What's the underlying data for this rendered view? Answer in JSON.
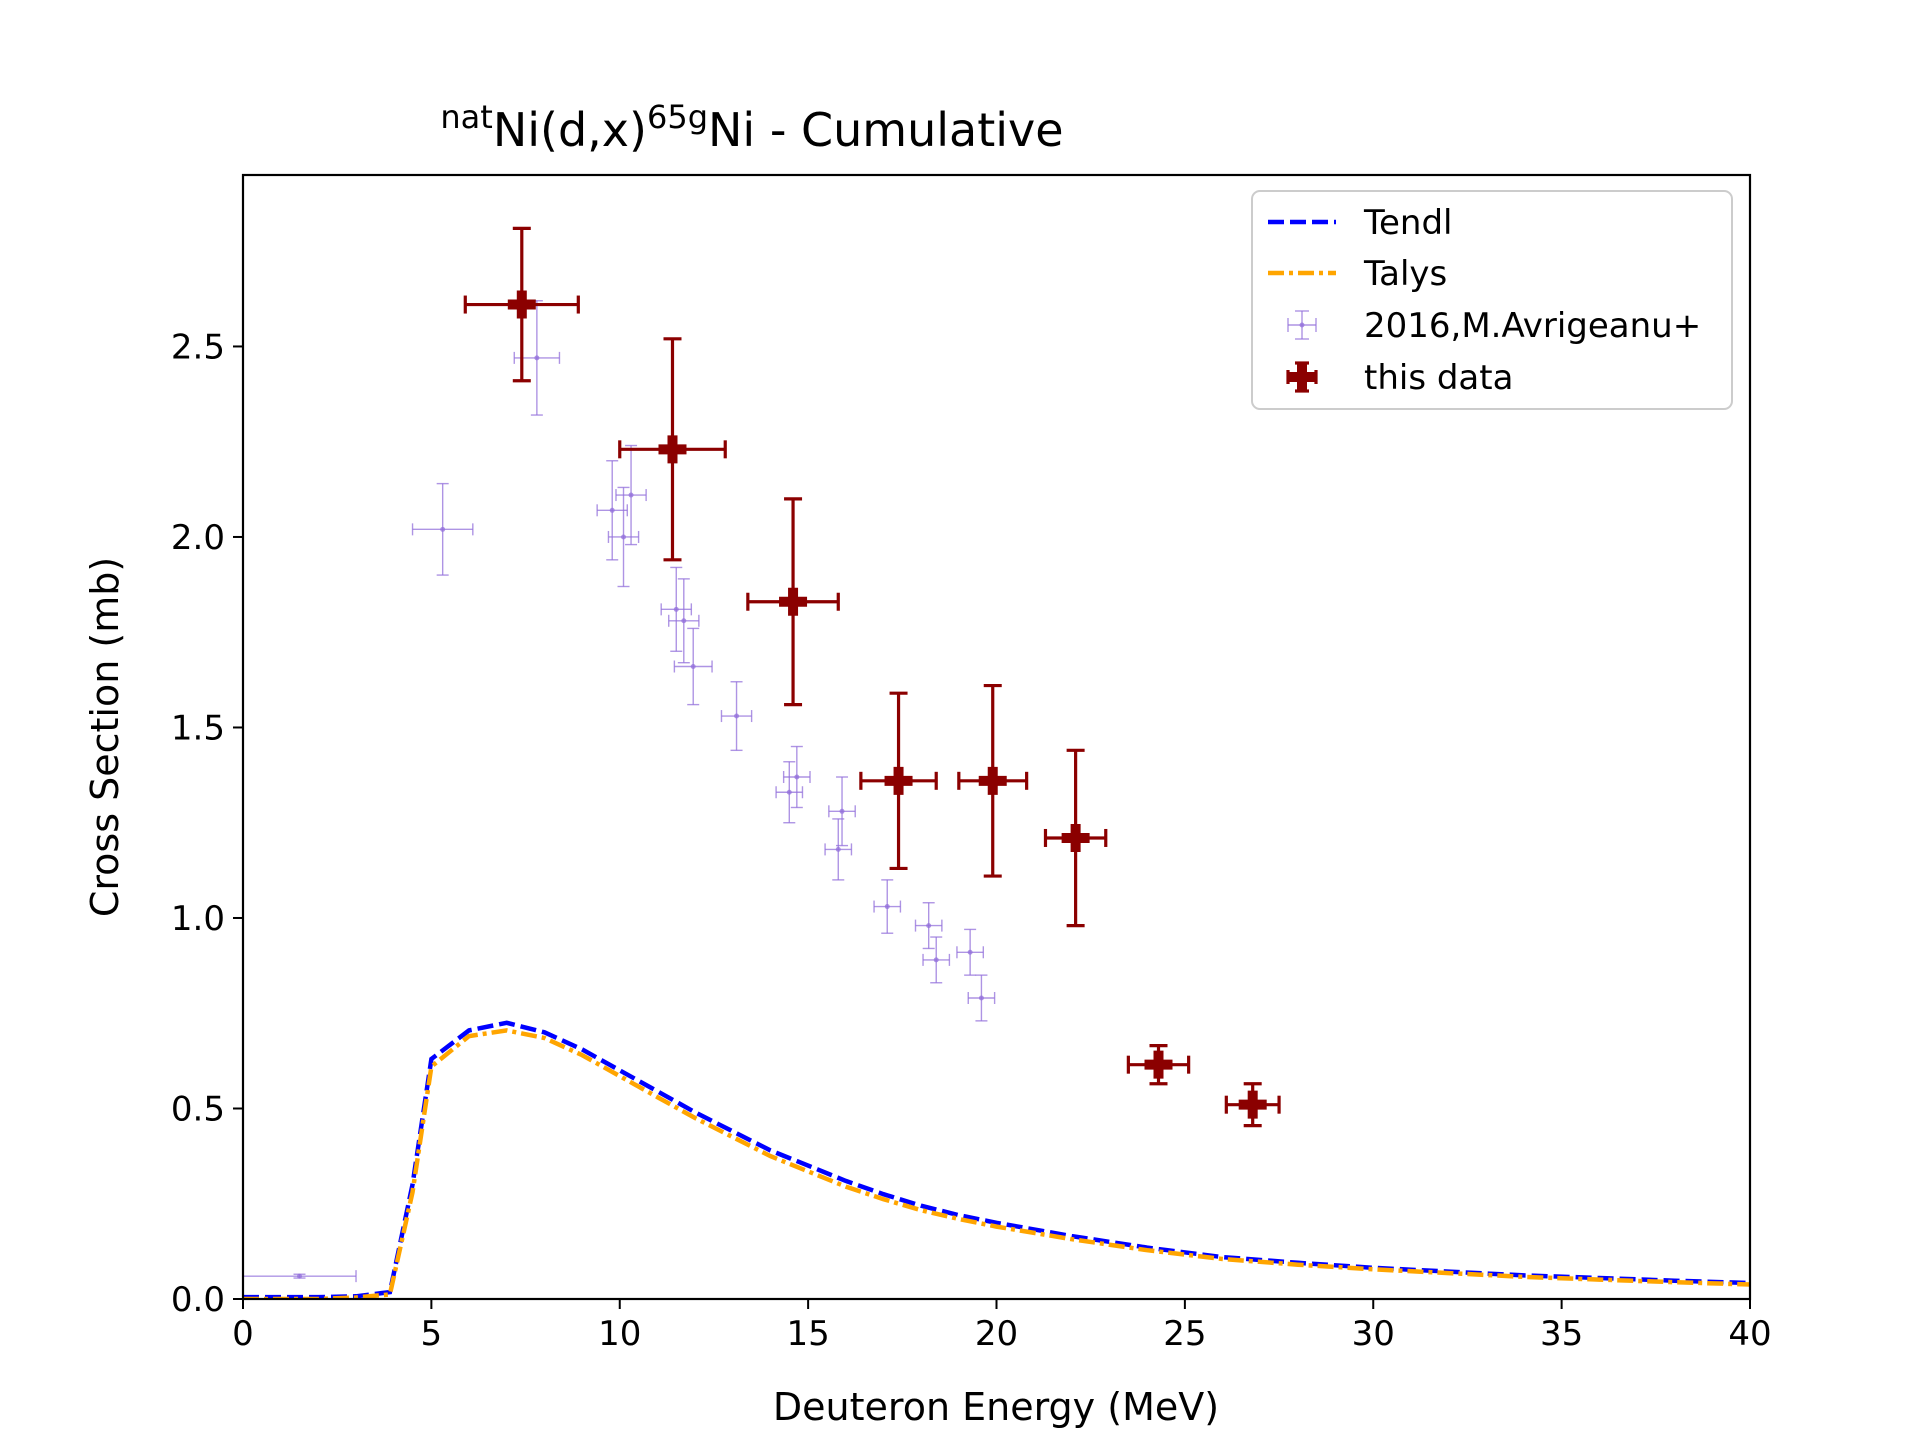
{
  "chart_data": {
    "type": "scatter",
    "title": {
      "superscript_1": "nat",
      "part_1": "Ni(d,x)",
      "superscript_2": "65g",
      "part_2": "Ni - Cumulative"
    },
    "xlabel": "Deuteron Energy (MeV)",
    "ylabel": "Cross Section (mb)",
    "xlim": [
      0,
      40
    ],
    "ylim": [
      0,
      2.95
    ],
    "x_ticks": [
      0,
      5,
      10,
      15,
      20,
      25,
      30,
      35,
      40
    ],
    "x_tick_labels": [
      "0",
      "5",
      "10",
      "15",
      "20",
      "25",
      "30",
      "35",
      "40"
    ],
    "y_ticks": [
      0,
      0.5,
      1.0,
      1.5,
      2.0,
      2.5
    ],
    "y_tick_labels": [
      "0.0",
      "0.5",
      "1.0",
      "1.5",
      "2.0",
      "2.5"
    ],
    "grid": false,
    "legend_position": "top-right",
    "series": [
      {
        "name": "Tendl",
        "kind": "line",
        "style": "dashed",
        "color": "#0000ff",
        "x": [
          0,
          1,
          2,
          3,
          3.9,
          4.5,
          5,
          6,
          7,
          8,
          9,
          10,
          11,
          12,
          13,
          14,
          15,
          16,
          17,
          18,
          19,
          20,
          22,
          24,
          26,
          28,
          30,
          32,
          34,
          36,
          38,
          40
        ],
        "y": [
          0.005,
          0.005,
          0.005,
          0.007,
          0.018,
          0.3,
          0.63,
          0.705,
          0.725,
          0.7,
          0.655,
          0.6,
          0.545,
          0.49,
          0.44,
          0.39,
          0.35,
          0.31,
          0.275,
          0.245,
          0.22,
          0.2,
          0.165,
          0.135,
          0.11,
          0.095,
          0.082,
          0.072,
          0.062,
          0.055,
          0.048,
          0.042
        ]
      },
      {
        "name": "Talys",
        "kind": "line",
        "style": "dashdot",
        "color": "#ffa500",
        "x": [
          0,
          1,
          2,
          3,
          3.9,
          4.5,
          5,
          6,
          7,
          8,
          9,
          10,
          11,
          12,
          13,
          14,
          15,
          16,
          17,
          18,
          19,
          20,
          22,
          24,
          26,
          28,
          30,
          32,
          34,
          36,
          38,
          40
        ],
        "y": [
          0.0,
          0.0,
          0.0,
          0.004,
          0.012,
          0.28,
          0.61,
          0.69,
          0.705,
          0.685,
          0.64,
          0.585,
          0.53,
          0.475,
          0.425,
          0.375,
          0.335,
          0.295,
          0.262,
          0.233,
          0.21,
          0.19,
          0.157,
          0.128,
          0.105,
          0.09,
          0.078,
          0.068,
          0.058,
          0.051,
          0.044,
          0.038
        ]
      },
      {
        "name": "2016,M.Avrigeanu+",
        "kind": "errorbar",
        "color": "#9370db",
        "points": [
          {
            "x": 1.5,
            "y": 0.06,
            "xerr": 1.5,
            "yerr": 0.005
          },
          {
            "x": 5.3,
            "y": 2.02,
            "xerr": 0.8,
            "yerr": 0.12
          },
          {
            "x": 7.8,
            "y": 2.47,
            "xerr": 0.6,
            "yerr": 0.15
          },
          {
            "x": 9.8,
            "y": 2.07,
            "xerr": 0.4,
            "yerr": 0.13
          },
          {
            "x": 10.1,
            "y": 2.0,
            "xerr": 0.4,
            "yerr": 0.13
          },
          {
            "x": 10.3,
            "y": 2.11,
            "xerr": 0.4,
            "yerr": 0.13
          },
          {
            "x": 11.5,
            "y": 1.81,
            "xerr": 0.4,
            "yerr": 0.11
          },
          {
            "x": 11.7,
            "y": 1.78,
            "xerr": 0.4,
            "yerr": 0.11
          },
          {
            "x": 11.95,
            "y": 1.66,
            "xerr": 0.5,
            "yerr": 0.1
          },
          {
            "x": 13.1,
            "y": 1.53,
            "xerr": 0.4,
            "yerr": 0.09
          },
          {
            "x": 14.5,
            "y": 1.33,
            "xerr": 0.35,
            "yerr": 0.08
          },
          {
            "x": 14.7,
            "y": 1.37,
            "xerr": 0.35,
            "yerr": 0.08
          },
          {
            "x": 15.8,
            "y": 1.18,
            "xerr": 0.35,
            "yerr": 0.08
          },
          {
            "x": 15.9,
            "y": 1.28,
            "xerr": 0.35,
            "yerr": 0.09
          },
          {
            "x": 17.1,
            "y": 1.03,
            "xerr": 0.35,
            "yerr": 0.07
          },
          {
            "x": 18.2,
            "y": 0.98,
            "xerr": 0.35,
            "yerr": 0.06
          },
          {
            "x": 18.4,
            "y": 0.89,
            "xerr": 0.35,
            "yerr": 0.06
          },
          {
            "x": 19.3,
            "y": 0.91,
            "xerr": 0.35,
            "yerr": 0.06
          },
          {
            "x": 19.6,
            "y": 0.79,
            "xerr": 0.35,
            "yerr": 0.06
          }
        ]
      },
      {
        "name": "this data",
        "kind": "errorbar",
        "color": "#8b0000",
        "points": [
          {
            "x": 7.4,
            "y": 2.61,
            "xerr": 1.5,
            "yerr": 0.2
          },
          {
            "x": 11.4,
            "y": 2.23,
            "xerr": 1.4,
            "yerr": 0.29
          },
          {
            "x": 14.6,
            "y": 1.83,
            "xerr": 1.2,
            "yerr": 0.27
          },
          {
            "x": 17.4,
            "y": 1.36,
            "xerr": 1.0,
            "yerr": 0.23
          },
          {
            "x": 19.9,
            "y": 1.36,
            "xerr": 0.9,
            "yerr": 0.25
          },
          {
            "x": 22.1,
            "y": 1.21,
            "xerr": 0.8,
            "yerr": 0.23
          },
          {
            "x": 24.3,
            "y": 0.615,
            "xerr": 0.8,
            "yerr": 0.05
          },
          {
            "x": 26.8,
            "y": 0.51,
            "xerr": 0.7,
            "yerr": 0.055
          }
        ]
      }
    ]
  }
}
